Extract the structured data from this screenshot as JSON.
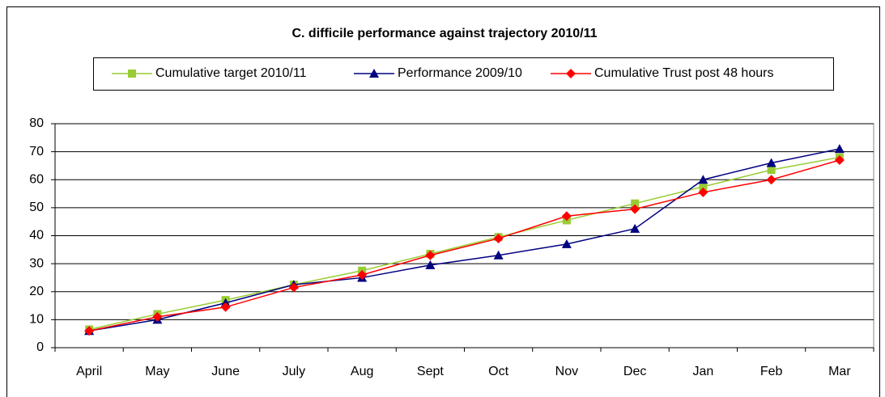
{
  "chart_data": {
    "type": "line",
    "title": "C. difficile performance against trajectory 2010/11",
    "categories": [
      "April",
      "May",
      "June",
      "July",
      "Aug",
      "Sept",
      "Oct",
      "Nov",
      "Dec",
      "Jan",
      "Feb",
      "Mar"
    ],
    "series": [
      {
        "name": "Cumulative target 2010/11",
        "color": "#99cc33",
        "marker": "square",
        "values": [
          6.5,
          12,
          17,
          22.5,
          27.5,
          33.5,
          39.5,
          45.5,
          51.5,
          57.5,
          63.5,
          68
        ]
      },
      {
        "name": "Performance 2009/10",
        "color": "#000080",
        "marker": "triangle",
        "values": [
          6,
          10,
          16,
          22.5,
          25,
          29.5,
          33,
          37,
          42.5,
          60,
          66,
          71
        ]
      },
      {
        "name": "Cumulative Trust post 48 hours",
        "color": "#ff0000",
        "marker": "diamond",
        "values": [
          6,
          11,
          14.5,
          21.5,
          26,
          33,
          39,
          47,
          49.5,
          55.5,
          60,
          67
        ]
      }
    ],
    "ylim": [
      0,
      80
    ],
    "yticks": [
      0,
      10,
      20,
      30,
      40,
      50,
      60,
      70,
      80
    ],
    "grid": true,
    "legend": "top"
  }
}
